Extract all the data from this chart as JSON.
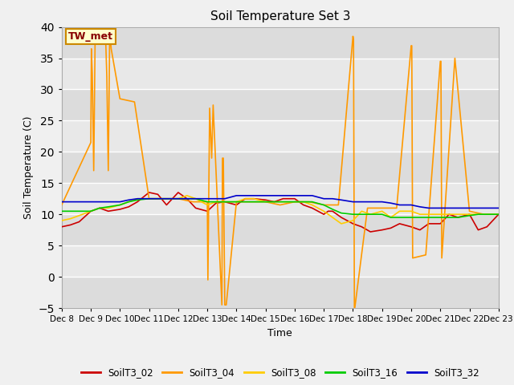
{
  "title": "Soil Temperature Set 3",
  "xlabel": "Time",
  "ylabel": "Soil Temperature (C)",
  "ylim": [
    -5,
    40
  ],
  "fig_facecolor": "#f0f0f0",
  "plot_facecolor": "#e8e8e8",
  "annotation_text": "TW_met",
  "annotation_bg": "#ffffcc",
  "annotation_border": "#cc8800",
  "annotation_text_color": "#880000",
  "series": {
    "SoilT3_02": {
      "color": "#cc0000",
      "x": [
        8,
        8.3,
        8.6,
        9,
        9.3,
        9.6,
        10,
        10.3,
        10.6,
        11,
        11.3,
        11.6,
        12,
        12.3,
        12.6,
        13,
        13.3,
        13.6,
        14,
        14.3,
        14.6,
        15,
        15.3,
        15.6,
        16,
        16.3,
        16.6,
        17,
        17.15,
        17.3,
        17.6,
        18,
        18.3,
        18.6,
        19,
        19.3,
        19.6,
        20,
        20.3,
        20.6,
        21,
        21.3,
        21.6,
        22,
        22.3,
        22.6,
        23
      ],
      "y": [
        8.0,
        8.3,
        8.8,
        10.5,
        11.0,
        10.5,
        10.8,
        11.2,
        12.0,
        13.5,
        13.2,
        11.5,
        13.5,
        12.5,
        11.0,
        10.5,
        11.8,
        12.0,
        11.5,
        12.5,
        12.5,
        12.3,
        12.0,
        12.5,
        12.5,
        11.5,
        11.0,
        10.0,
        10.5,
        10.5,
        9.5,
        8.5,
        8.0,
        7.2,
        7.5,
        7.8,
        8.5,
        8.0,
        7.5,
        8.5,
        8.5,
        10.0,
        9.5,
        10.0,
        7.5,
        8.0,
        10.0
      ]
    },
    "SoilT3_04": {
      "color": "#ff9900",
      "x": [
        8,
        9,
        9.02,
        9.05,
        9.1,
        9.15,
        9.2,
        9.5,
        9.55,
        9.6,
        9.65,
        9.7,
        10,
        10.5,
        11,
        11.5,
        12,
        12.5,
        13,
        13.02,
        13.08,
        13.15,
        13.2,
        13.5,
        13.52,
        13.55,
        13.6,
        13.65,
        14,
        14.5,
        15,
        15.5,
        16,
        16.5,
        17,
        17.5,
        18,
        18.02,
        18.05,
        18.5,
        19,
        19.5,
        20,
        20.02,
        20.05,
        20.5,
        21,
        21.02,
        21.05,
        21.5,
        22,
        22.5,
        23
      ],
      "y": [
        11.5,
        21.5,
        36.5,
        32.5,
        17.0,
        39.0,
        37.5,
        39.5,
        32.0,
        17.0,
        39.5,
        36.5,
        28.5,
        28.0,
        12.5,
        12.5,
        12.5,
        12.0,
        12.0,
        -0.5,
        27.0,
        19.0,
        27.5,
        -4.5,
        19.0,
        19.0,
        -4.5,
        -4.5,
        12.0,
        12.0,
        12.0,
        11.5,
        12.0,
        12.0,
        11.5,
        11.5,
        38.5,
        38.0,
        -5.5,
        11.0,
        11.0,
        11.0,
        37.0,
        37.0,
        3.0,
        3.5,
        34.5,
        34.5,
        3.0,
        35.0,
        10.5,
        10.0,
        10.0
      ]
    },
    "SoilT3_08": {
      "color": "#ffcc00",
      "x": [
        8,
        8.3,
        8.6,
        9,
        9.3,
        9.6,
        10,
        10.3,
        10.6,
        11,
        11.3,
        11.6,
        12,
        12.3,
        12.6,
        13,
        13.3,
        13.6,
        14,
        14.3,
        14.6,
        15,
        15.3,
        15.6,
        16,
        16.3,
        16.6,
        17,
        17.3,
        17.6,
        18,
        18.3,
        18.6,
        19,
        19.3,
        19.6,
        20,
        20.3,
        20.6,
        21,
        21.3,
        21.6,
        22,
        22.3,
        22.6,
        23
      ],
      "y": [
        9.0,
        9.3,
        9.8,
        10.5,
        11.0,
        11.0,
        11.5,
        12.0,
        12.5,
        12.5,
        12.5,
        12.5,
        12.5,
        13.0,
        12.5,
        11.5,
        12.0,
        12.0,
        12.0,
        12.5,
        12.5,
        12.0,
        12.0,
        12.0,
        12.0,
        12.0,
        11.5,
        10.5,
        9.5,
        8.5,
        9.0,
        10.5,
        10.0,
        10.5,
        9.5,
        10.5,
        10.5,
        10.0,
        10.0,
        10.0,
        10.0,
        10.0,
        10.0,
        10.0,
        10.0,
        10.0
      ]
    },
    "SoilT3_16": {
      "color": "#00cc00",
      "x": [
        8,
        8.3,
        8.6,
        9,
        9.3,
        9.6,
        10,
        10.3,
        10.6,
        11,
        11.3,
        11.6,
        12,
        12.3,
        12.6,
        13,
        13.3,
        13.6,
        14,
        14.3,
        14.6,
        15,
        15.3,
        15.6,
        16,
        16.3,
        16.6,
        17,
        17.3,
        17.6,
        18,
        18.3,
        18.6,
        19,
        19.3,
        19.6,
        20,
        20.3,
        20.6,
        21,
        21.3,
        21.6,
        22,
        22.3,
        22.6,
        23
      ],
      "y": [
        10.5,
        10.5,
        10.5,
        10.5,
        11.0,
        11.2,
        11.5,
        12.0,
        12.3,
        12.5,
        12.5,
        12.5,
        12.5,
        12.5,
        12.5,
        12.0,
        12.0,
        12.0,
        12.0,
        12.0,
        12.0,
        12.0,
        12.0,
        12.0,
        12.0,
        12.0,
        12.0,
        11.5,
        10.8,
        10.2,
        10.0,
        10.0,
        10.0,
        10.0,
        9.5,
        9.5,
        9.5,
        9.5,
        9.5,
        9.5,
        9.5,
        9.5,
        9.8,
        10.0,
        10.0,
        10.0
      ]
    },
    "SoilT3_32": {
      "color": "#0000cc",
      "x": [
        8,
        8.3,
        8.6,
        9,
        9.3,
        9.6,
        10,
        10.3,
        10.6,
        11,
        11.3,
        11.6,
        12,
        12.3,
        12.6,
        13,
        13.3,
        13.6,
        14,
        14.3,
        14.6,
        15,
        15.3,
        15.6,
        16,
        16.3,
        16.6,
        17,
        17.3,
        17.6,
        18,
        18.3,
        18.6,
        19,
        19.3,
        19.6,
        20,
        20.3,
        20.6,
        21,
        21.3,
        21.6,
        22,
        22.3,
        22.6,
        23
      ],
      "y": [
        12.0,
        12.0,
        12.0,
        12.0,
        12.0,
        12.0,
        12.0,
        12.3,
        12.5,
        12.5,
        12.5,
        12.5,
        12.5,
        12.5,
        12.5,
        12.5,
        12.5,
        12.5,
        13.0,
        13.0,
        13.0,
        13.0,
        13.0,
        13.0,
        13.0,
        13.0,
        13.0,
        12.5,
        12.5,
        12.3,
        12.0,
        12.0,
        12.0,
        12.0,
        11.8,
        11.5,
        11.5,
        11.2,
        11.0,
        11.0,
        11.0,
        11.0,
        11.0,
        11.0,
        11.0,
        11.0
      ]
    }
  },
  "xtick_labels": [
    "Dec 8",
    "Dec 9",
    "Dec 10",
    "Dec 11",
    "Dec 12",
    "Dec 13",
    "Dec 14",
    "Dec 15",
    "Dec 16",
    "Dec 17",
    "Dec 18",
    "Dec 19",
    "Dec 20",
    "Dec 21",
    "Dec 22",
    "Dec 23"
  ],
  "xtick_positions": [
    8,
    9,
    10,
    11,
    12,
    13,
    14,
    15,
    16,
    17,
    18,
    19,
    20,
    21,
    22,
    23
  ],
  "ytick_positions": [
    -5,
    0,
    5,
    10,
    15,
    20,
    25,
    30,
    35,
    40
  ],
  "legend_order": [
    "SoilT3_02",
    "SoilT3_04",
    "SoilT3_08",
    "SoilT3_16",
    "SoilT3_32"
  ],
  "grid_color": "#ffffff",
  "grid_linewidth": 1.0,
  "band_colors": [
    "#dcdcdc",
    "#e8e8e8"
  ]
}
